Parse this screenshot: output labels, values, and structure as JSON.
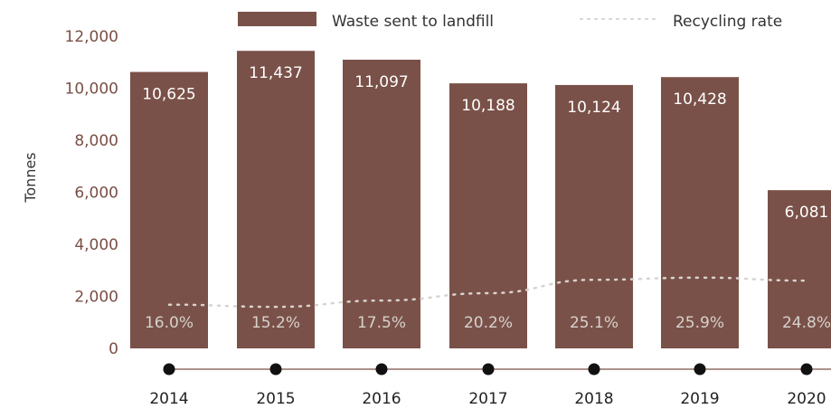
{
  "colors": {
    "bar": "#7a5148",
    "rate_line": "#d8d3ce",
    "timeline_line": "#7a5148",
    "timeline_dot": "#111111",
    "axis_text": "#7a4f46"
  },
  "legend": {
    "waste_label": "Waste sent to landfill",
    "rate_label": "Recycling rate"
  },
  "chart_data": {
    "type": "bar",
    "categories": [
      "2014",
      "2015",
      "2016",
      "2017",
      "2018",
      "2019",
      "2020"
    ],
    "series": [
      {
        "name": "Waste sent to landfill",
        "values": [
          10625,
          11437,
          11097,
          10188,
          10124,
          10428,
          6081
        ],
        "labels": [
          "10,625",
          "11,437",
          "11,097",
          "10,188",
          "10,124",
          "10,428",
          "6,081"
        ]
      },
      {
        "name": "Recycling rate",
        "values": [
          16.0,
          15.2,
          17.5,
          20.2,
          25.1,
          25.9,
          24.8
        ],
        "labels": [
          "16.0%",
          "15.2%",
          "17.5%",
          "20.2%",
          "25.1%",
          "25.9%",
          "24.8%"
        ],
        "render": "dotted-line"
      }
    ],
    "ylabel": "Tonnes",
    "ylim": [
      0,
      12000
    ],
    "yticks": [
      0,
      2000,
      4000,
      6000,
      8000,
      10000,
      12000
    ],
    "ytick_labels": [
      "0",
      "2,000",
      "4,000",
      "6,000",
      "8,000",
      "10,000",
      "12,000"
    ],
    "legend_position": "top",
    "grid": false
  }
}
